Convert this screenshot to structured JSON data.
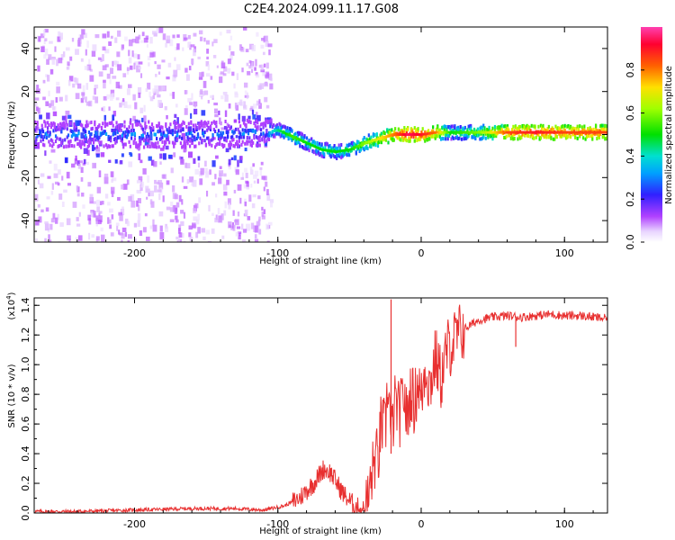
{
  "title": "C2E4.2024.099.11.17.G08",
  "chart_data": [
    {
      "type": "heatmap",
      "title": "C2E4.2024.099.11.17.G08",
      "xlabel": "Height of straight line (km)",
      "ylabel": "Frequency (Hz)",
      "xlim": [
        -270,
        130
      ],
      "ylim": [
        -50,
        50
      ],
      "x_ticks": [
        -200,
        -100,
        0,
        100
      ],
      "y_ticks": [
        -40,
        -20,
        0,
        20,
        40
      ],
      "colorbar": {
        "label": "Normalized spectral amplitude",
        "range": [
          0,
          1
        ],
        "ticks": [
          0.0,
          0.2,
          0.4,
          0.6,
          0.8
        ],
        "tick_labels": [
          "0.0",
          "0.2",
          "0.4",
          "0.6",
          "0.8"
        ]
      },
      "trace_center_hz": {
        "x": [
          -270,
          -200,
          -150,
          -110,
          -100,
          -90,
          -80,
          -70,
          -60,
          -50,
          -40,
          -30,
          -20,
          -10,
          0,
          10,
          20,
          40,
          60,
          80,
          100,
          130
        ],
        "y": [
          0,
          0,
          0,
          1,
          2,
          -1,
          -4,
          -7,
          -8,
          -7,
          -4,
          -2,
          0,
          0,
          0,
          1,
          1,
          1,
          1,
          1,
          1,
          1
        ]
      },
      "trace_amplitude": {
        "x": [
          -270,
          -200,
          -150,
          -110,
          -100,
          -90,
          -80,
          -70,
          -60,
          -50,
          -40,
          -30,
          -20,
          -10,
          0,
          10,
          20,
          40,
          60,
          80,
          100,
          130
        ],
        "values": [
          0.3,
          0.3,
          0.3,
          0.3,
          0.45,
          0.55,
          0.5,
          0.5,
          0.5,
          0.5,
          0.6,
          0.7,
          0.8,
          0.95,
          0.9,
          0.8,
          0.5,
          0.6,
          0.85,
          0.9,
          0.85,
          0.85
        ]
      },
      "noise_region_end_km": -105
    },
    {
      "type": "line",
      "xlabel": "Height of straight line (km)",
      "ylabel": "SNR (10 * v/v)",
      "y_multiplier_label": "(x10",
      "y_multiplier_exp": "4",
      "xlim": [
        -270,
        130
      ],
      "ylim": [
        0,
        1.45
      ],
      "x_ticks": [
        -200,
        -100,
        0,
        100
      ],
      "y_ticks": [
        0.0,
        0.2,
        0.4,
        0.6,
        0.8,
        1.0,
        1.2,
        1.4
      ],
      "y_tick_labels": [
        "0.0",
        "0.2",
        "0.4",
        "0.6",
        "0.8",
        "1.0",
        "1.2",
        "1.4"
      ],
      "color": "#e83030",
      "series": [
        {
          "name": "SNR",
          "x": [
            -270,
            -240,
            -200,
            -160,
            -130,
            -110,
            -95,
            -85,
            -75,
            -68,
            -63,
            -60,
            -55,
            -50,
            -45,
            -40,
            -37,
            -35,
            -32,
            -30,
            -28,
            -25,
            -23,
            -21,
            -18,
            -15,
            -12,
            -10,
            -7,
            -5,
            -2,
            0,
            3,
            6,
            10,
            14,
            18,
            22,
            26,
            30,
            35,
            40,
            45,
            50,
            60,
            70,
            80,
            90,
            100,
            110,
            120,
            130
          ],
          "values": [
            0.01,
            0.01,
            0.02,
            0.03,
            0.03,
            0.02,
            0.05,
            0.1,
            0.2,
            0.3,
            0.27,
            0.22,
            0.14,
            0.08,
            0.04,
            0.02,
            0.08,
            0.22,
            0.38,
            0.35,
            0.6,
            0.55,
            0.92,
            0.5,
            0.75,
            0.65,
            0.82,
            0.62,
            0.85,
            0.72,
            0.9,
            0.75,
            1.0,
            0.85,
            1.05,
            0.9,
            1.1,
            1.15,
            1.2,
            1.24,
            1.27,
            1.3,
            1.31,
            1.32,
            1.33,
            1.32,
            1.33,
            1.34,
            1.33,
            1.33,
            1.32,
            1.31
          ]
        }
      ],
      "spikes": [
        {
          "x": -21,
          "value": 1.44
        },
        {
          "x": 66,
          "value": 1.12
        }
      ]
    }
  ]
}
